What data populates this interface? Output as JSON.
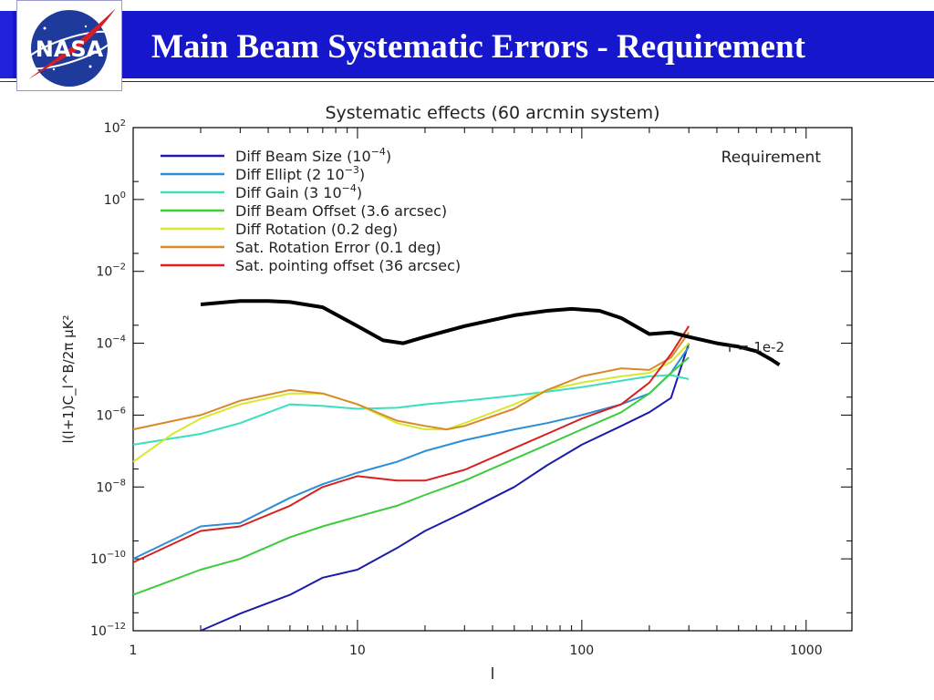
{
  "slide": {
    "title": "Main Beam Systematic Errors - Requirement",
    "logo_text": "NASA",
    "colors": {
      "header_bg": "#1616cc",
      "title": "#ffffff"
    }
  },
  "chart_data": {
    "type": "line",
    "title": "Systematic effects (60 arcmin system)",
    "annotation": "Requirement",
    "curve_label": "r = 1e-2",
    "xlabel": "l",
    "ylabel": "l(l+1)C_l^B/2π μK²",
    "xscale": "log",
    "yscale": "log",
    "xlim": [
      1,
      1600
    ],
    "ylim": [
      1e-12,
      100
    ],
    "xticks": [
      {
        "value": 1,
        "label": "1"
      },
      {
        "value": 10,
        "label": "10"
      },
      {
        "value": 100,
        "label": "100"
      },
      {
        "value": 1000,
        "label": "1000"
      }
    ],
    "yticks": [
      {
        "value": 1e-12,
        "base": "10",
        "exp": "−12"
      },
      {
        "value": 1e-10,
        "base": "10",
        "exp": "−10"
      },
      {
        "value": 1e-08,
        "base": "10",
        "exp": "−8"
      },
      {
        "value": 1e-06,
        "base": "10",
        "exp": "−6"
      },
      {
        "value": 0.0001,
        "base": "10",
        "exp": "−4"
      },
      {
        "value": 0.01,
        "base": "10",
        "exp": "−2"
      },
      {
        "value": 1,
        "base": "10",
        "exp": "0"
      },
      {
        "value": 100,
        "base": "10",
        "exp": "2"
      }
    ],
    "series": [
      {
        "name": "Diff Beam Size (10",
        "sup": "−4",
        "tail": ")",
        "color": "#1c1ca8",
        "x": [
          2,
          3,
          5,
          7,
          10,
          15,
          20,
          30,
          50,
          70,
          100,
          150,
          200,
          250,
          300
        ],
        "y": [
          1e-12,
          3e-12,
          1e-11,
          3e-11,
          5e-11,
          2e-10,
          6e-10,
          2e-09,
          1e-08,
          4e-08,
          1.5e-07,
          5e-07,
          1.2e-06,
          3e-06,
          0.0001
        ]
      },
      {
        "name": "Diff Ellipt (2 10",
        "sup": "−3",
        "tail": ")",
        "color": "#2c8ed6",
        "x": [
          1,
          2,
          3,
          5,
          7,
          10,
          15,
          20,
          30,
          50,
          70,
          100,
          150,
          200,
          250,
          300
        ],
        "y": [
          1e-10,
          8e-10,
          1e-09,
          5e-09,
          1.2e-08,
          2.5e-08,
          5e-08,
          1e-07,
          2e-07,
          4e-07,
          6e-07,
          1e-06,
          2e-06,
          4e-06,
          1.5e-05,
          8e-05
        ]
      },
      {
        "name": "Diff Gain (3 10",
        "sup": "−4",
        "tail": ")",
        "color": "#3cdec0",
        "x": [
          1,
          2,
          3,
          5,
          7,
          10,
          15,
          20,
          30,
          50,
          70,
          100,
          150,
          200,
          250,
          300
        ],
        "y": [
          1.5e-07,
          3e-07,
          6e-07,
          2e-06,
          1.8e-06,
          1.5e-06,
          1.6e-06,
          2e-06,
          2.5e-06,
          3.5e-06,
          4.5e-06,
          6e-06,
          9e-06,
          1.2e-05,
          1.3e-05,
          1e-05
        ]
      },
      {
        "name": "Diff Beam Offset (3.6 arcsec",
        "sup": "",
        "tail": ")",
        "color": "#3ccc3c",
        "x": [
          1,
          2,
          3,
          5,
          7,
          10,
          15,
          20,
          30,
          50,
          70,
          100,
          150,
          200,
          250,
          300
        ],
        "y": [
          1e-11,
          5e-11,
          1e-10,
          4e-10,
          8e-10,
          1.5e-09,
          3e-09,
          6e-09,
          1.5e-08,
          6e-08,
          1.5e-07,
          4e-07,
          1.2e-06,
          4e-06,
          1.5e-05,
          4e-05
        ]
      },
      {
        "name": "Diff Rotation (0.2 deg",
        "sup": "",
        "tail": ")",
        "color": "#d8e830",
        "x": [
          1,
          1.5,
          2,
          3,
          5,
          7,
          10,
          15,
          20,
          25,
          30,
          50,
          70,
          100,
          150,
          200,
          250,
          300
        ],
        "y": [
          5e-08,
          3e-07,
          8e-07,
          2e-06,
          4e-06,
          4e-06,
          2e-06,
          6e-07,
          4e-07,
          4e-07,
          6e-07,
          2e-06,
          5e-06,
          8e-06,
          1.2e-05,
          1.5e-05,
          3e-05,
          0.0001
        ]
      },
      {
        "name": "Sat. Rotation Error (0.1 deg",
        "sup": "",
        "tail": ")",
        "color": "#d88a2a",
        "x": [
          1,
          2,
          3,
          5,
          7,
          10,
          15,
          20,
          25,
          30,
          50,
          70,
          100,
          150,
          200,
          250,
          300
        ],
        "y": [
          4e-07,
          1e-06,
          2.5e-06,
          5e-06,
          4e-06,
          2e-06,
          7e-07,
          5e-07,
          4e-07,
          5e-07,
          1.5e-06,
          5e-06,
          1.2e-05,
          2e-05,
          1.8e-05,
          4e-05,
          0.0002
        ]
      },
      {
        "name": "Sat. pointing offset (36 arcsec",
        "sup": "",
        "tail": ")",
        "color": "#d82020",
        "x": [
          1,
          2,
          3,
          5,
          7,
          10,
          15,
          20,
          30,
          50,
          70,
          100,
          150,
          200,
          250,
          300
        ],
        "y": [
          8e-11,
          6e-10,
          8e-10,
          3e-09,
          1e-08,
          2e-08,
          1.5e-08,
          1.5e-08,
          3e-08,
          1.2e-07,
          3e-07,
          8e-07,
          2e-06,
          8e-06,
          5e-05,
          0.0003
        ]
      }
    ],
    "requirement": {
      "color": "#000000",
      "x": [
        2,
        3,
        4,
        5,
        7,
        10,
        13,
        16,
        20,
        30,
        50,
        70,
        90,
        120,
        150,
        200,
        250,
        300,
        400,
        500,
        600,
        700,
        760
      ],
      "y": [
        0.0012,
        0.0015,
        0.0015,
        0.0014,
        0.001,
        0.0003,
        0.00012,
        0.0001,
        0.00015,
        0.0003,
        0.0006,
        0.0008,
        0.0009,
        0.0008,
        0.0005,
        0.00018,
        0.0002,
        0.00015,
        0.0001,
        8e-05,
        6e-05,
        3.5e-05,
        2.5e-05
      ]
    }
  }
}
